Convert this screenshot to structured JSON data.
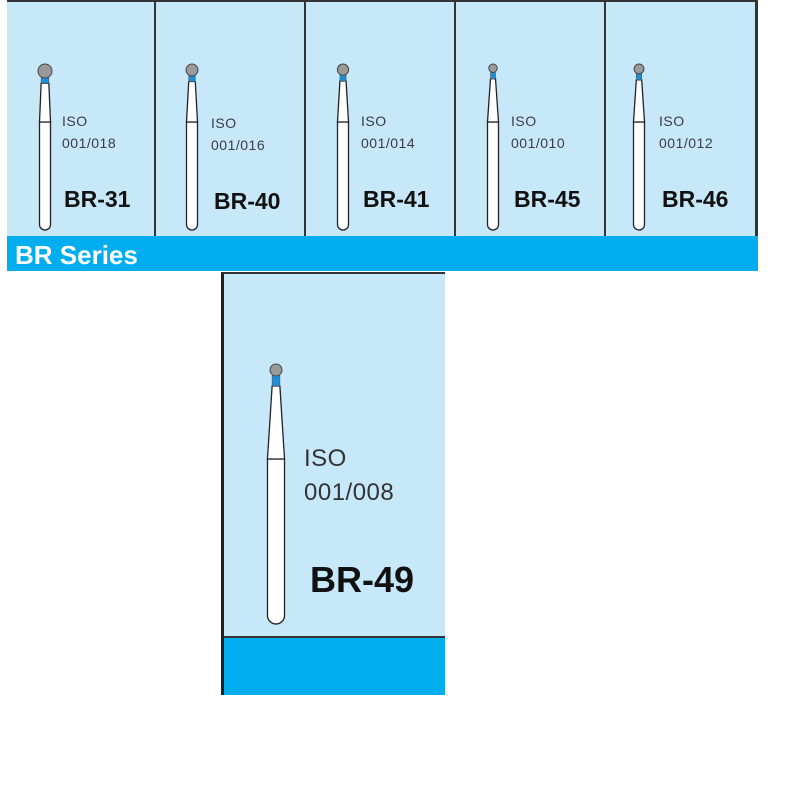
{
  "series_label": "BR Series",
  "colors": {
    "panel": "#c7e8f9",
    "band": "#00aeef",
    "head": "#9a9a9a",
    "collar": "#1d8fd8"
  },
  "products": [
    {
      "code": "BR-31",
      "iso_label": "ISO",
      "iso_number": "001/018",
      "head_size": 1.0
    },
    {
      "code": "BR-40",
      "iso_label": "ISO",
      "iso_number": "001/016",
      "head_size": 0.85
    },
    {
      "code": "BR-41",
      "iso_label": "ISO",
      "iso_number": "001/014",
      "head_size": 0.8
    },
    {
      "code": "BR-45",
      "iso_label": "ISO",
      "iso_number": "001/010",
      "head_size": 0.6
    },
    {
      "code": "BR-46",
      "iso_label": "ISO",
      "iso_number": "001/012",
      "head_size": 0.7
    }
  ],
  "featured": {
    "code": "BR-49",
    "iso_label": "ISO",
    "iso_number": "001/008",
    "head_size": 0.55
  }
}
